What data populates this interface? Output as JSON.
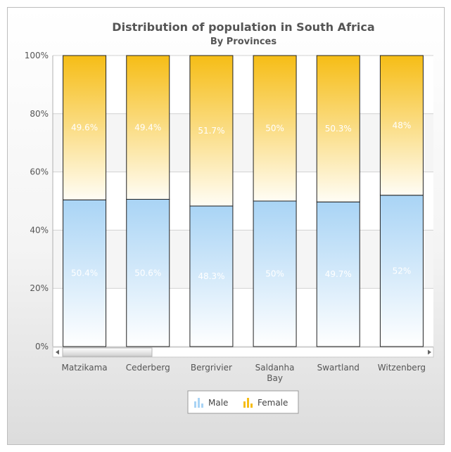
{
  "chart_data": {
    "type": "bar",
    "stacked": "percent",
    "title": "Distribution of population in South Africa",
    "subtitle": "By Provinces",
    "categories": [
      "Matzikama",
      "Cederberg",
      "Bergrivier",
      "Saldanha Bay",
      "Swartland",
      "Witzenberg"
    ],
    "series": [
      {
        "name": "Male",
        "values": [
          50.4,
          50.6,
          48.3,
          50,
          49.7,
          52
        ],
        "labels": [
          "50.4%",
          "50.6%",
          "48.3%",
          "50%",
          "49.7%",
          "52%"
        ],
        "color": "#a9d4f5"
      },
      {
        "name": "Female",
        "values": [
          49.6,
          49.4,
          51.7,
          50,
          50.3,
          48
        ],
        "labels": [
          "49.6%",
          "49.4%",
          "51.7%",
          "50%",
          "50.3%",
          "48%"
        ],
        "color": "#f6bd16"
      }
    ],
    "ylim": [
      0,
      100
    ],
    "yticks": [
      "0%",
      "20%",
      "40%",
      "60%",
      "80%",
      "100%"
    ],
    "legend": "bottom",
    "grid": true,
    "scrollbar": true
  }
}
